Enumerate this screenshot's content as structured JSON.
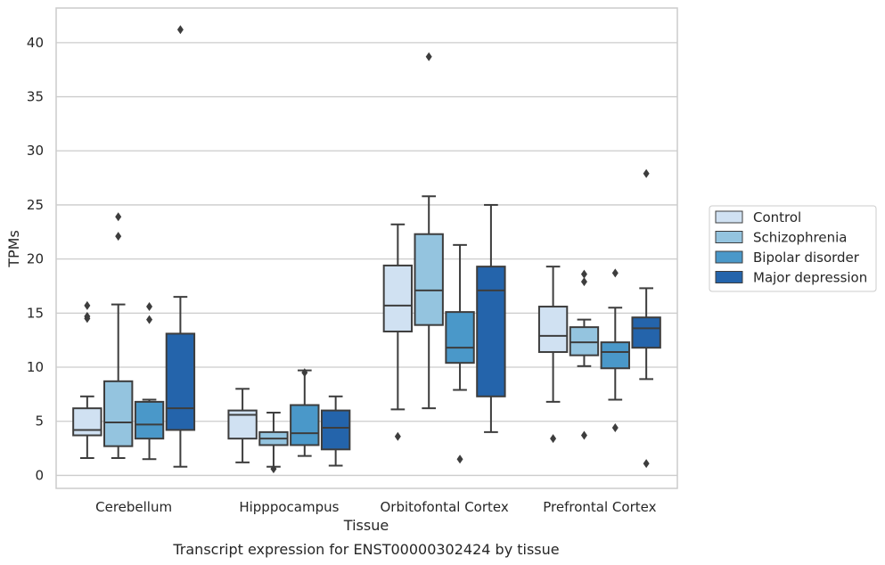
{
  "caption": "Transcript expression for ENST00000302424 by tissue",
  "chart_data": {
    "type": "boxplot",
    "title": "",
    "xlabel": "Tissue",
    "ylabel": "TPMs",
    "ylim": [
      -1.2,
      43.2
    ],
    "yticks": [
      0,
      5,
      10,
      15,
      20,
      25,
      30,
      35,
      40
    ],
    "grid": "horizontal",
    "legend_position": "right",
    "categories": [
      "Cerebellum",
      "Hipppocampus",
      "Orbitofontal Cortex",
      "Prefrontal Cortex"
    ],
    "series": [
      {
        "name": "Control",
        "color": "#d0e1f2",
        "boxes": [
          {
            "whislo": 1.6,
            "q1": 3.7,
            "med": 4.2,
            "q3": 6.2,
            "whishi": 7.3,
            "fliers": [
              15.7,
              14.7,
              14.5
            ]
          },
          {
            "whislo": 1.2,
            "q1": 3.4,
            "med": 5.6,
            "q3": 6.0,
            "whishi": 8.0,
            "fliers": []
          },
          {
            "whislo": 6.1,
            "q1": 13.3,
            "med": 15.7,
            "q3": 19.4,
            "whishi": 23.2,
            "fliers": [
              3.6
            ]
          },
          {
            "whislo": 6.8,
            "q1": 11.4,
            "med": 12.9,
            "q3": 15.6,
            "whishi": 19.3,
            "fliers": [
              3.4
            ]
          }
        ]
      },
      {
        "name": "Schizophrenia",
        "color": "#94c4df",
        "boxes": [
          {
            "whislo": 1.6,
            "q1": 2.7,
            "med": 4.9,
            "q3": 8.7,
            "whishi": 15.8,
            "fliers": [
              23.9,
              22.1
            ]
          },
          {
            "whislo": 0.8,
            "q1": 2.8,
            "med": 3.4,
            "q3": 4.0,
            "whishi": 5.8,
            "fliers": [
              0.6
            ]
          },
          {
            "whislo": 6.2,
            "q1": 13.9,
            "med": 17.1,
            "q3": 22.3,
            "whishi": 25.8,
            "fliers": [
              38.7
            ]
          },
          {
            "whislo": 10.1,
            "q1": 11.1,
            "med": 12.3,
            "q3": 13.7,
            "whishi": 14.4,
            "fliers": [
              18.6,
              17.9,
              3.7
            ]
          }
        ]
      },
      {
        "name": "Bipolar disorder",
        "color": "#4a98c9",
        "boxes": [
          {
            "whislo": 1.5,
            "q1": 3.4,
            "med": 4.7,
            "q3": 6.8,
            "whishi": 7.0,
            "fliers": [
              15.6,
              14.4
            ]
          },
          {
            "whislo": 1.8,
            "q1": 2.8,
            "med": 3.9,
            "q3": 6.5,
            "whishi": 9.7,
            "fliers": [
              9.5
            ]
          },
          {
            "whislo": 7.9,
            "q1": 10.4,
            "med": 11.8,
            "q3": 15.1,
            "whishi": 21.3,
            "fliers": [
              1.5
            ]
          },
          {
            "whislo": 7.0,
            "q1": 9.9,
            "med": 11.4,
            "q3": 12.3,
            "whishi": 15.5,
            "fliers": [
              18.7,
              4.4
            ]
          }
        ]
      },
      {
        "name": "Major depression",
        "color": "#2464ab",
        "boxes": [
          {
            "whislo": 0.8,
            "q1": 4.2,
            "med": 6.2,
            "q3": 13.1,
            "whishi": 16.5,
            "fliers": [
              41.2
            ]
          },
          {
            "whislo": 0.9,
            "q1": 2.4,
            "med": 4.4,
            "q3": 6.0,
            "whishi": 7.3,
            "fliers": []
          },
          {
            "whislo": 4.0,
            "q1": 7.3,
            "med": 17.1,
            "q3": 19.3,
            "whishi": 25.0,
            "fliers": []
          },
          {
            "whislo": 8.9,
            "q1": 11.8,
            "med": 13.6,
            "q3": 14.6,
            "whishi": 17.3,
            "fliers": [
              27.9,
              1.1
            ]
          }
        ]
      }
    ]
  }
}
